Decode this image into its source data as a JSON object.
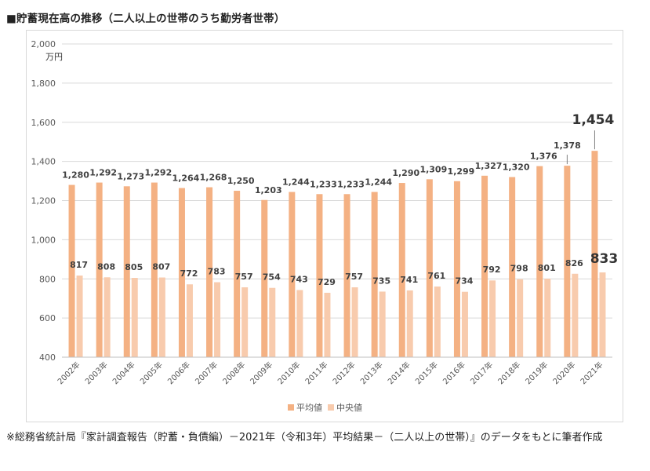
{
  "title": "■貯蓄現在高の推移（二人以上の世帯のうち勤労者世帯）",
  "note": "※総務省統計局『家計調査報告（貯蓄・負債編）－2021年（令和3年）平均結果－（二人以上の世帯）』のデータをもとに筆者作成",
  "chart_data": {
    "type": "bar",
    "unit_label": "万円",
    "categories": [
      "2002年",
      "2003年",
      "2004年",
      "2005年",
      "2006年",
      "2007年",
      "2008年",
      "2009年",
      "2010年",
      "2011年",
      "2012年",
      "2013年",
      "2014年",
      "2015年",
      "2016年",
      "2017年",
      "2018年",
      "2019年",
      "2020年",
      "2021年"
    ],
    "series": [
      {
        "name": "平均値",
        "color": "#f4b183",
        "values": [
          1280,
          1292,
          1273,
          1292,
          1264,
          1268,
          1250,
          1203,
          1244,
          1233,
          1233,
          1244,
          1290,
          1309,
          1299,
          1327,
          1320,
          1376,
          1378,
          1454
        ],
        "labels": [
          "1,280",
          "1,292",
          "1,273",
          "1,292",
          "1,264",
          "1,268",
          "1,250",
          "1,203",
          "1,244",
          "1,233",
          "1,233",
          "1,244",
          "1,290",
          "1,309",
          "1,299",
          "1,327",
          "1,320",
          "1,376",
          "1,378",
          "1,454"
        ]
      },
      {
        "name": "中央値",
        "color": "#f8cbad",
        "values": [
          817,
          808,
          805,
          807,
          772,
          783,
          757,
          754,
          743,
          729,
          757,
          735,
          741,
          761,
          734,
          792,
          798,
          801,
          826,
          833
        ],
        "labels": [
          "817",
          "808",
          "805",
          "807",
          "772",
          "783",
          "757",
          "754",
          "743",
          "729",
          "757",
          "735",
          "741",
          "761",
          "734",
          "792",
          "798",
          "801",
          "826",
          "833"
        ]
      }
    ],
    "ylim": [
      400,
      2000
    ],
    "yticks": [
      "400",
      "600",
      "800",
      "1,000",
      "1,200",
      "1,400",
      "1,600",
      "1,800",
      "2,000"
    ],
    "grid": true,
    "legend_position": "bottom",
    "highlight_last": true
  }
}
